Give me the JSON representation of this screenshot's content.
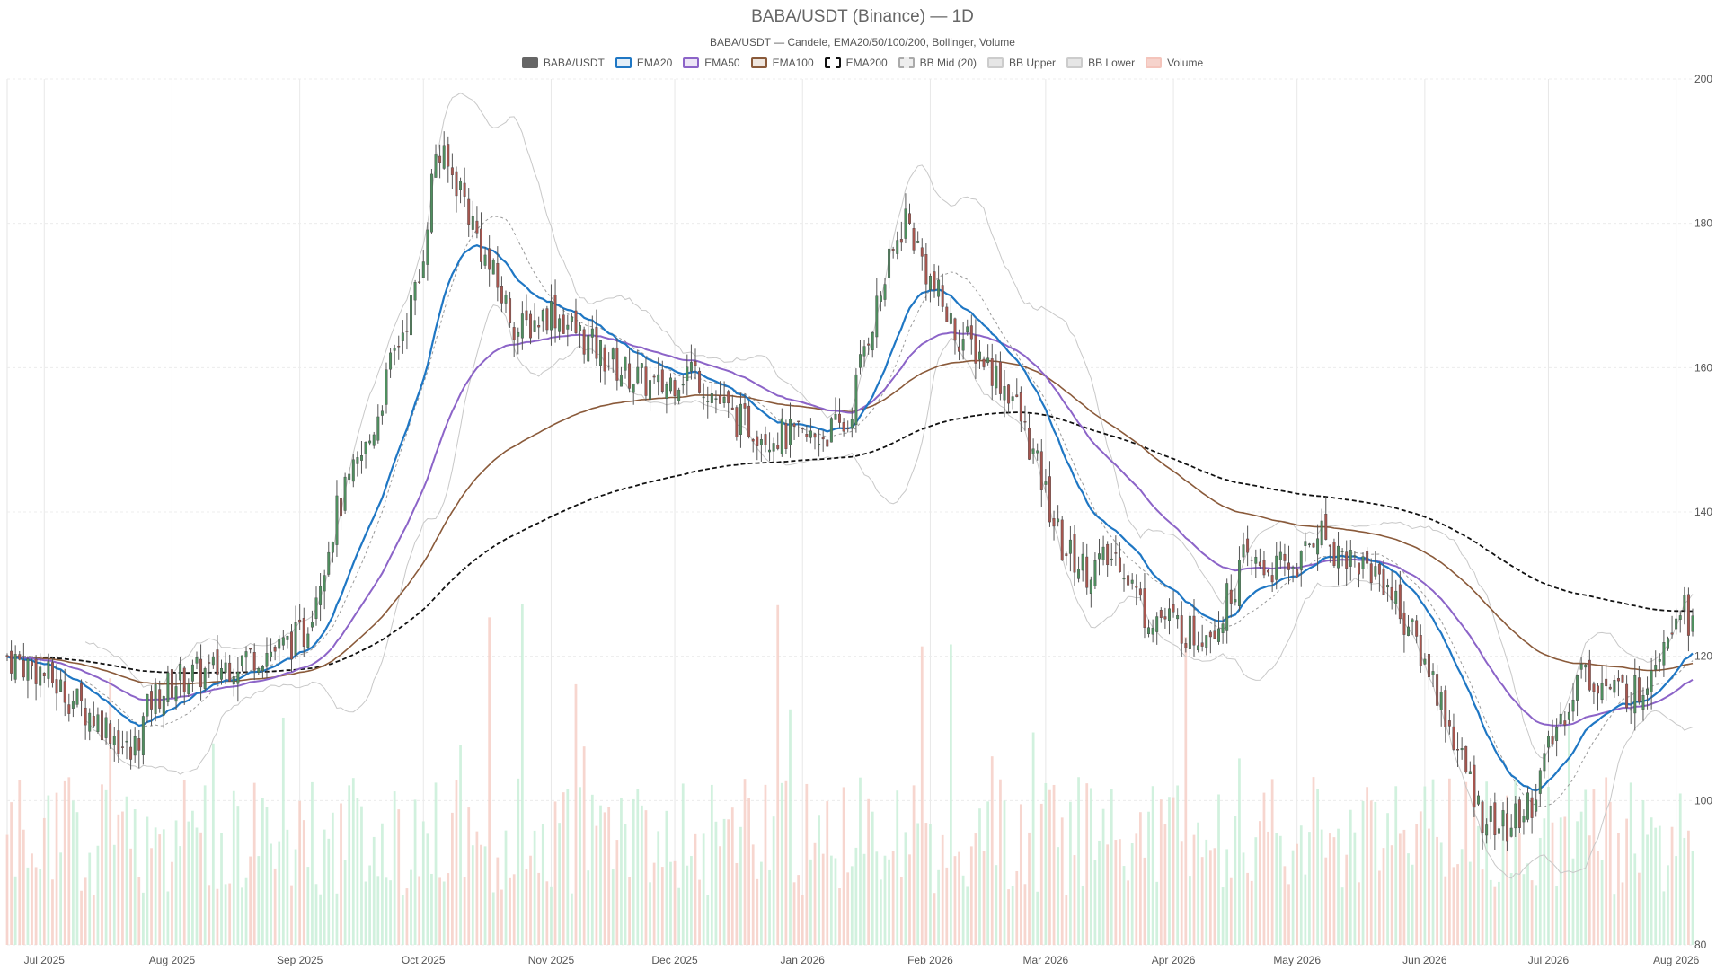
{
  "chart_data": {
    "type": "candlestick",
    "title": "BABA/USDT (Binance) — 1D",
    "subtitle": "BABA/USDT — Candele, EMA20/50/100/200, Bollinger, Volume",
    "legend": [
      {
        "name": "BABA/USDT",
        "color": "#666666",
        "fill": "#666666",
        "dash": false
      },
      {
        "name": "EMA20",
        "color": "#1f77c4",
        "fill": "#e3eef8",
        "dash": false
      },
      {
        "name": "EMA50",
        "color": "#8c64c8",
        "fill": "#ede6f6",
        "dash": false
      },
      {
        "name": "EMA100",
        "color": "#8a5a3a",
        "fill": "#efe6de",
        "dash": false
      },
      {
        "name": "EMA200",
        "color": "#111111",
        "fill": "#ffffff",
        "dash": true
      },
      {
        "name": "BB Mid (20)",
        "color": "#aaaaaa",
        "fill": "#eeeeee",
        "dash": true
      },
      {
        "name": "BB Upper",
        "color": "#cccccc",
        "fill": "#e6e6e6",
        "dash": false
      },
      {
        "name": "BB Lower",
        "color": "#cccccc",
        "fill": "#e6e6e6",
        "dash": false
      },
      {
        "name": "Volume",
        "color": "#f4c4bb",
        "fill": "#f6d3cc",
        "dash": false
      }
    ],
    "y_ticks": [
      80,
      100,
      120,
      140,
      160,
      180,
      200
    ],
    "ylim": [
      80,
      200
    ],
    "x_ticks": [
      "Jul 2025",
      "Aug 2025",
      "Sep 2025",
      "Oct 2025",
      "Nov 2025",
      "Dec 2025",
      "Jan 2026",
      "Feb 2026",
      "Mar 2026",
      "Apr 2026",
      "May 2026",
      "Jun 2026",
      "Jul 2026",
      "Aug 2026"
    ],
    "x_tick_days": [
      9,
      40,
      71,
      101,
      132,
      162,
      193,
      224,
      252,
      283,
      313,
      344,
      374,
      405
    ],
    "x_range_days": [
      0,
      409
    ],
    "trend_anchors": [
      [
        0,
        120
      ],
      [
        8,
        118
      ],
      [
        18,
        113
      ],
      [
        25,
        110
      ],
      [
        30,
        106
      ],
      [
        35,
        114
      ],
      [
        42,
        117
      ],
      [
        50,
        118
      ],
      [
        58,
        120
      ],
      [
        66,
        121
      ],
      [
        72,
        123
      ],
      [
        80,
        140
      ],
      [
        88,
        150
      ],
      [
        94,
        162
      ],
      [
        100,
        172
      ],
      [
        104,
        190
      ],
      [
        110,
        185
      ],
      [
        116,
        175
      ],
      [
        124,
        165
      ],
      [
        132,
        168
      ],
      [
        140,
        164
      ],
      [
        148,
        160
      ],
      [
        158,
        157
      ],
      [
        166,
        160
      ],
      [
        176,
        153
      ],
      [
        184,
        151
      ],
      [
        194,
        150
      ],
      [
        204,
        152
      ],
      [
        208,
        163
      ],
      [
        214,
        174
      ],
      [
        218,
        181
      ],
      [
        224,
        172
      ],
      [
        230,
        165
      ],
      [
        236,
        162
      ],
      [
        244,
        156
      ],
      [
        250,
        146
      ],
      [
        256,
        135
      ],
      [
        262,
        132
      ],
      [
        270,
        134
      ],
      [
        276,
        126
      ],
      [
        282,
        125
      ],
      [
        288,
        123
      ],
      [
        294,
        125
      ],
      [
        300,
        133
      ],
      [
        308,
        132
      ],
      [
        314,
        133
      ],
      [
        318,
        138
      ],
      [
        322,
        135
      ],
      [
        328,
        133
      ],
      [
        334,
        131
      ],
      [
        340,
        124
      ],
      [
        346,
        117
      ],
      [
        352,
        107
      ],
      [
        358,
        98
      ],
      [
        364,
        96
      ],
      [
        370,
        100
      ],
      [
        376,
        110
      ],
      [
        382,
        118
      ],
      [
        390,
        115
      ],
      [
        396,
        115
      ],
      [
        402,
        123
      ],
      [
        406,
        128
      ],
      [
        409,
        124
      ]
    ]
  }
}
